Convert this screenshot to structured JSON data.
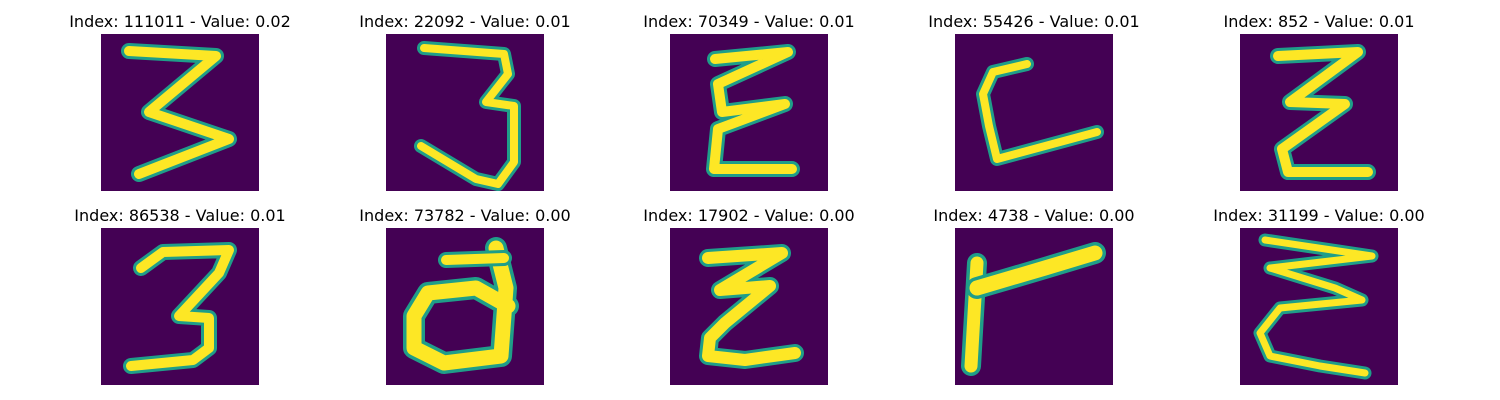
{
  "colors": {
    "background": "#440154",
    "stroke_core": "#fde725",
    "stroke_edge": "#1f9e89"
  },
  "panels": [
    {
      "title": "Index: 111011 - Value: 0.02",
      "glyph": "three-zigzag"
    },
    {
      "title": "Index: 22092 - Value: 0.01",
      "glyph": "three-open"
    },
    {
      "title": "Index: 70349 - Value: 0.01",
      "glyph": "epsilon-a"
    },
    {
      "title": "Index: 55426 - Value: 0.01",
      "glyph": "open-l"
    },
    {
      "title": "Index: 852 - Value: 0.01",
      "glyph": "z-like"
    },
    {
      "title": "Index: 86538 - Value: 0.01",
      "glyph": "three-b"
    },
    {
      "title": "Index: 73782 - Value: 0.00",
      "glyph": "d-like"
    },
    {
      "title": "Index: 17902 - Value: 0.00",
      "glyph": "epsilon-b"
    },
    {
      "title": "Index: 4738 - Value: 0.00",
      "glyph": "r-like"
    },
    {
      "title": "Index: 31199 - Value: 0.00",
      "glyph": "epsilon-c"
    }
  ]
}
